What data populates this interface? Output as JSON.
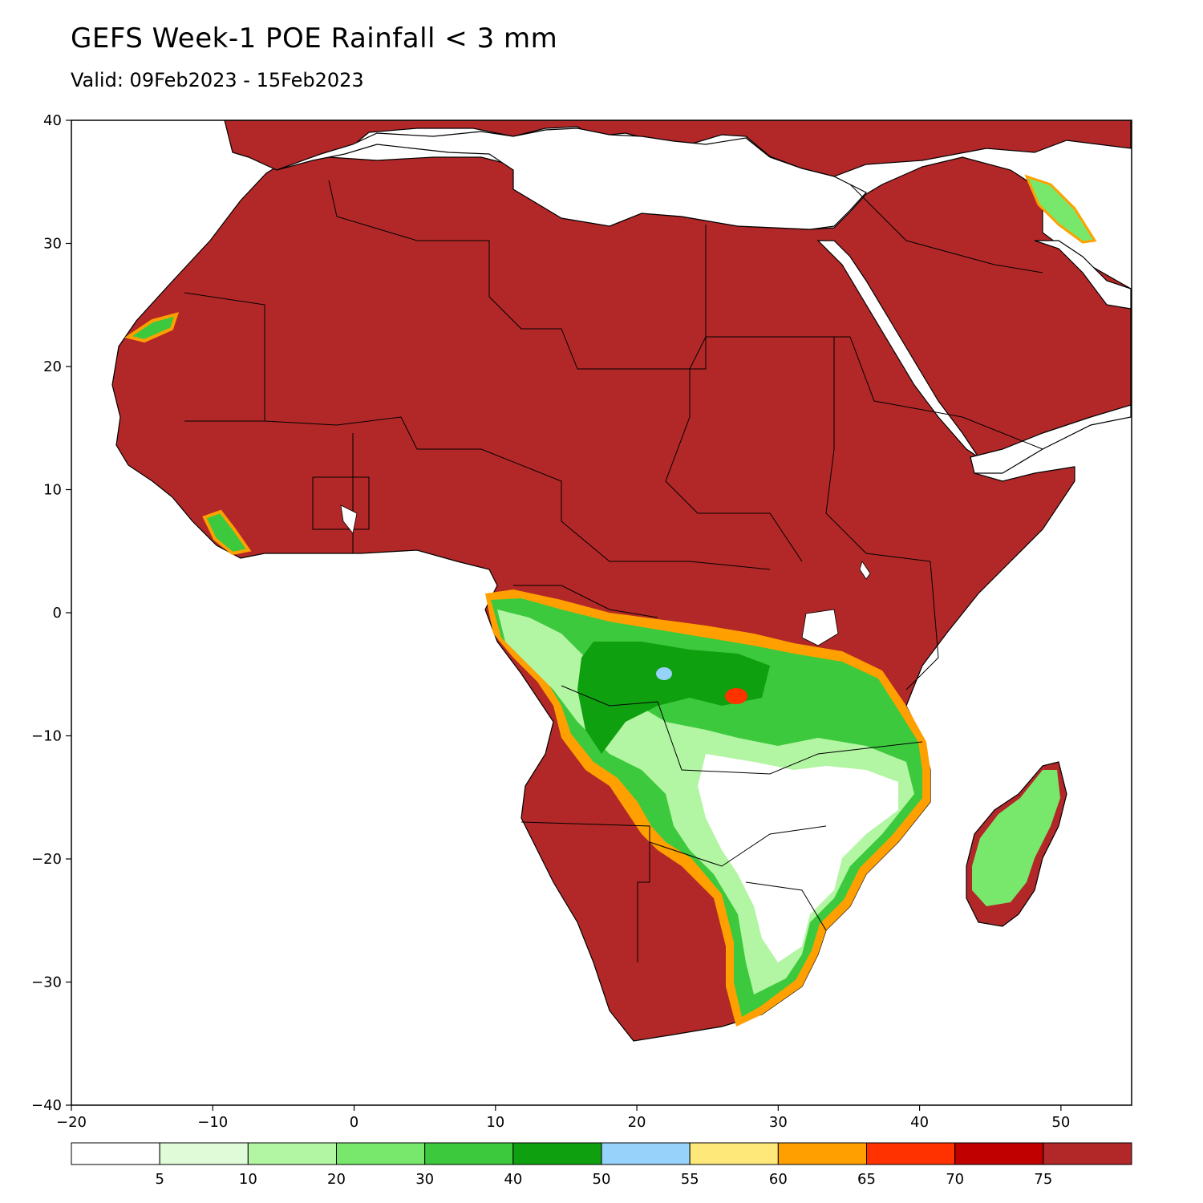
{
  "title": "GEFS Week-1 POE Rainfall < 3 mm",
  "subtitle": "Valid: 09Feb2023 - 15Feb2023",
  "axes": {
    "x_ticks": [
      "-20",
      "-10",
      "0",
      "10",
      "20",
      "30",
      "40",
      "50"
    ],
    "y_ticks": [
      "40",
      "30",
      "20",
      "10",
      "0",
      "-10",
      "-20",
      "-30",
      "-40"
    ],
    "x_range": [
      -20,
      55
    ],
    "y_range": [
      -40,
      40
    ]
  },
  "colorbar": {
    "labels": [
      "5",
      "10",
      "20",
      "30",
      "40",
      "50",
      "55",
      "60",
      "65",
      "70",
      "75"
    ],
    "colors": [
      "#ffffff",
      "#e0fbd8",
      "#b2f5a2",
      "#78e86c",
      "#3dc93d",
      "#0fa00f",
      "#96d2fa",
      "#ffe87a",
      "#ffa000",
      "#ff3200",
      "#c00000",
      "#b22828"
    ]
  },
  "colors": {
    "land": "#b22828",
    "ocean": "#ffffff",
    "border": "#000000"
  }
}
